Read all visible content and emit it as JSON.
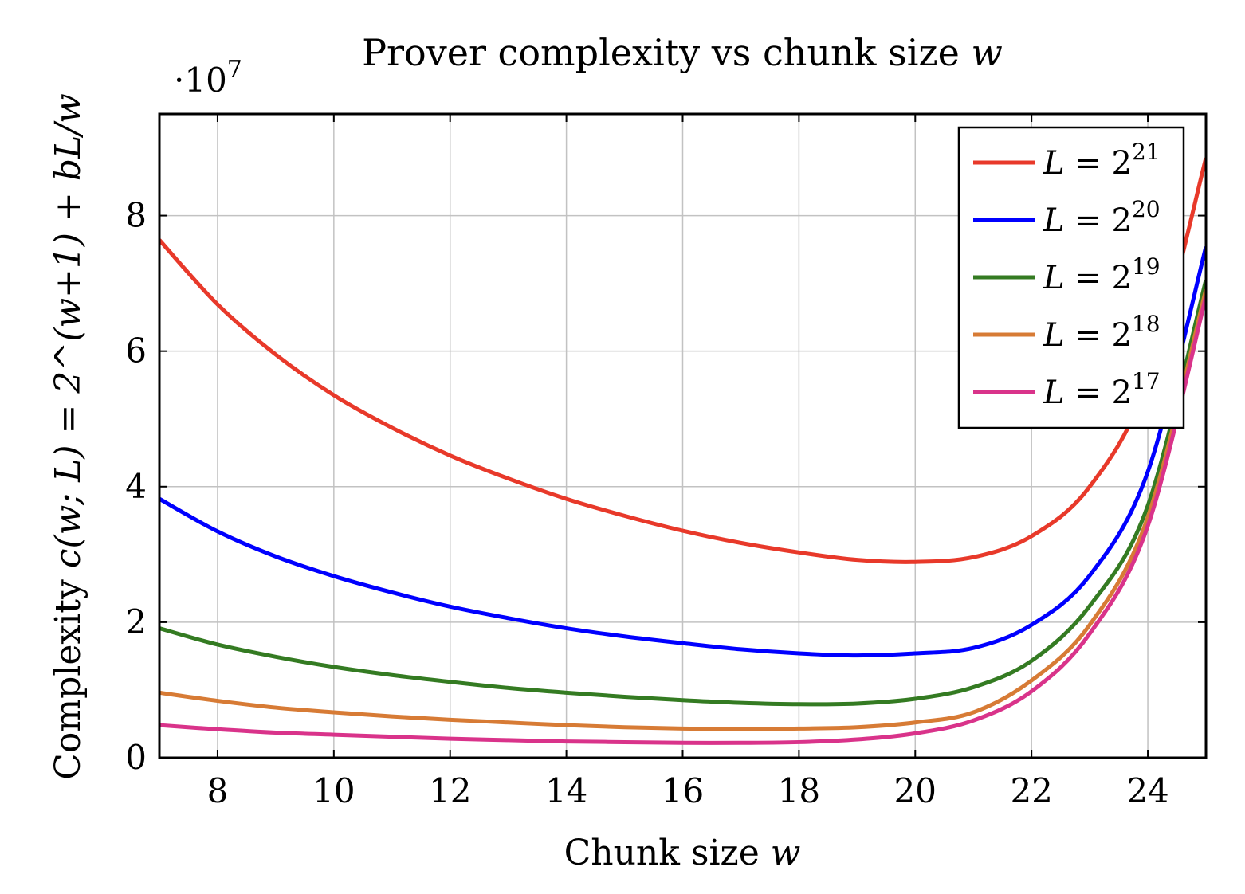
{
  "chart_data": {
    "type": "line",
    "title": "Prover complexity vs chunk size",
    "title_var": "w",
    "xlabel": "Chunk size",
    "xlabel_var": "w",
    "ylabel": "Complexity",
    "ylabel_formula": "c(w; L) = 2^(w+1) + bL/w",
    "y_scale_label": "·10",
    "y_scale_exp": "7",
    "xlim": [
      7,
      25
    ],
    "ylim": [
      0,
      9.5
    ],
    "x_ticks": [
      8,
      10,
      12,
      14,
      16,
      18,
      20,
      22,
      24
    ],
    "y_ticks": [
      0,
      2,
      4,
      6,
      8
    ],
    "grid": true,
    "legend_position": "top-right",
    "x": [
      7,
      8,
      9,
      10,
      11,
      12,
      13,
      14,
      15,
      16,
      17,
      18,
      19,
      20,
      21,
      22,
      23,
      24,
      25
    ],
    "series": [
      {
        "name": "L = 2^21",
        "legend_base": "L = 2",
        "legend_exp": "21",
        "color": "#e8392a",
        "values": [
          7.64,
          6.69,
          5.95,
          5.35,
          4.87,
          4.46,
          4.12,
          3.82,
          3.57,
          3.35,
          3.17,
          3.03,
          2.92,
          2.89,
          2.96,
          3.27,
          4.0,
          5.56,
          8.85
        ]
      },
      {
        "name": "L = 2^20",
        "legend_base": "L = 2",
        "legend_exp": "20",
        "color": "#0000ff",
        "values": [
          3.82,
          3.34,
          2.97,
          2.68,
          2.44,
          2.23,
          2.06,
          1.91,
          1.79,
          1.69,
          1.6,
          1.54,
          1.51,
          1.54,
          1.62,
          1.96,
          2.69,
          4.22,
          7.54
        ]
      },
      {
        "name": "L = 2^19",
        "legend_base": "L = 2",
        "legend_exp": "19",
        "color": "#347b22",
        "values": [
          1.91,
          1.67,
          1.49,
          1.34,
          1.22,
          1.12,
          1.03,
          0.96,
          0.9,
          0.85,
          0.81,
          0.79,
          0.8,
          0.87,
          1.04,
          1.43,
          2.24,
          3.72,
          7.05
        ]
      },
      {
        "name": "L = 2^18",
        "legend_base": "L = 2",
        "legend_exp": "18",
        "color": "#d77b35",
        "values": [
          0.96,
          0.84,
          0.74,
          0.67,
          0.61,
          0.56,
          0.52,
          0.48,
          0.45,
          0.43,
          0.42,
          0.43,
          0.45,
          0.52,
          0.67,
          1.14,
          1.96,
          3.55,
          6.91
        ]
      },
      {
        "name": "L = 2^17",
        "legend_base": "L = 2",
        "legend_exp": "17",
        "color": "#d9338a",
        "values": [
          0.48,
          0.42,
          0.37,
          0.34,
          0.31,
          0.28,
          0.26,
          0.24,
          0.23,
          0.22,
          0.22,
          0.23,
          0.27,
          0.36,
          0.55,
          0.98,
          1.83,
          3.42,
          6.81
        ]
      }
    ]
  }
}
